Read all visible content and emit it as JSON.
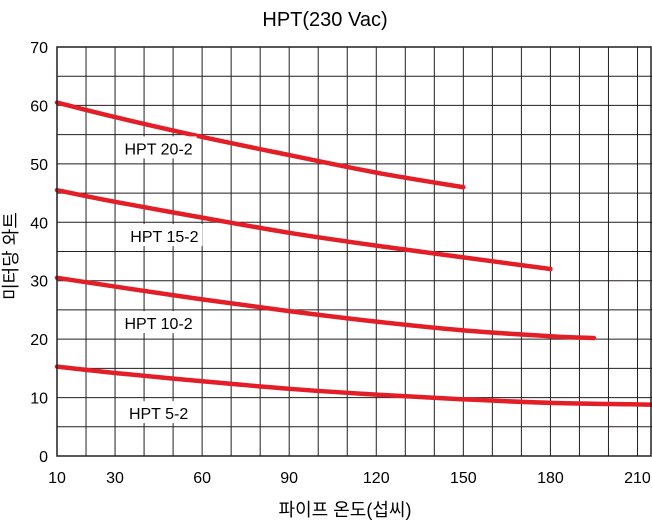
{
  "chart_data": {
    "type": "line",
    "title": "HPT(230 Vac)",
    "xlabel": "파이프 온도(섭씨)",
    "ylabel": "미터당 와트",
    "xlim": [
      10,
      215
    ],
    "ylim": [
      0,
      70
    ],
    "x_ticks": [
      10,
      30,
      60,
      90,
      120,
      150,
      180,
      210
    ],
    "y_ticks": [
      0,
      10,
      20,
      30,
      40,
      50,
      60,
      70
    ],
    "x_grid_step": 10,
    "y_grid_step": 5,
    "grid": true,
    "line_color": "#e31e26",
    "series": [
      {
        "name": "HPT 20-2",
        "x": [
          10,
          30,
          60,
          90,
          120,
          150
        ],
        "y": [
          60.5,
          58,
          54.6,
          51.5,
          48.5,
          46
        ]
      },
      {
        "name": "HPT 15-2",
        "x": [
          10,
          30,
          60,
          90,
          120,
          150,
          180
        ],
        "y": [
          45.5,
          43.5,
          40.8,
          38.2,
          36,
          34,
          32
        ]
      },
      {
        "name": "HPT 10-2",
        "x": [
          10,
          30,
          60,
          90,
          120,
          150,
          180,
          195
        ],
        "y": [
          30.5,
          29,
          26.8,
          24.8,
          23,
          21.5,
          20.5,
          20.2
        ]
      },
      {
        "name": "HPT 5-2",
        "x": [
          10,
          30,
          60,
          90,
          120,
          150,
          180,
          215
        ],
        "y": [
          15.3,
          14.2,
          12.8,
          11.5,
          10.5,
          9.7,
          9.1,
          8.8
        ]
      }
    ]
  }
}
